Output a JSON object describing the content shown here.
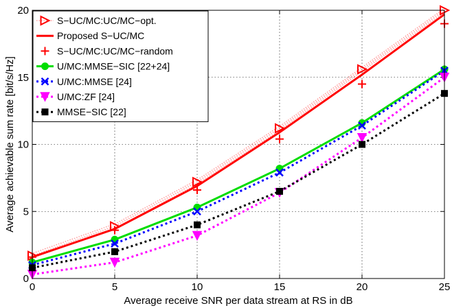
{
  "chart_data": {
    "type": "line",
    "title": "",
    "xlabel": "Average receive SNR per data stream at RS in dB",
    "ylabel": "Average achievable sum rate [bit/s/Hz]",
    "xlim": [
      0,
      25
    ],
    "ylim": [
      0,
      20
    ],
    "x_ticks": [
      "0",
      "5",
      "10",
      "15",
      "20",
      "25"
    ],
    "y_ticks": [
      "0",
      "5",
      "10",
      "15",
      "20"
    ],
    "grid": true,
    "legend_position": "top-left",
    "x": [
      0,
      5,
      10,
      15,
      20,
      25
    ],
    "series": [
      {
        "name": "S−UC/MC:UC/MC−opt.",
        "values": [
          1.7,
          3.9,
          7.2,
          11.2,
          15.6,
          20.0
        ],
        "color": "#ff0000",
        "marker": "triangle-right",
        "line": "dotted-band"
      },
      {
        "name": "Proposed S−UC/MC",
        "values": [
          1.6,
          3.7,
          6.9,
          10.9,
          15.2,
          19.7
        ],
        "color": "#ff0000",
        "marker": "none",
        "line": "solid"
      },
      {
        "name": "S−UC/MC:UC/MC−random",
        "values": [
          1.6,
          3.6,
          6.6,
          10.4,
          14.5,
          19.0
        ],
        "color": "#ff0000",
        "marker": "plus",
        "line": "none"
      },
      {
        "name": "U/MC:MMSE−SIC [22+24]",
        "values": [
          1.2,
          2.9,
          5.3,
          8.2,
          11.6,
          15.6
        ],
        "color": "#00dd00",
        "marker": "circle",
        "line": "solid"
      },
      {
        "name": "U/MC:MMSE [24]",
        "values": [
          1.0,
          2.6,
          5.0,
          7.9,
          11.4,
          15.5
        ],
        "color": "#0000ff",
        "marker": "x",
        "line": "dotted"
      },
      {
        "name": "U/MC:ZF [24]",
        "values": [
          0.3,
          1.2,
          3.2,
          6.4,
          10.5,
          15.0
        ],
        "color": "#ff00ff",
        "marker": "triangle-down",
        "line": "dotted"
      },
      {
        "name": "MMSE−SIC [22]",
        "values": [
          0.8,
          2.0,
          4.0,
          6.5,
          10.0,
          13.8
        ],
        "color": "#000000",
        "marker": "square",
        "line": "dotted"
      }
    ]
  }
}
